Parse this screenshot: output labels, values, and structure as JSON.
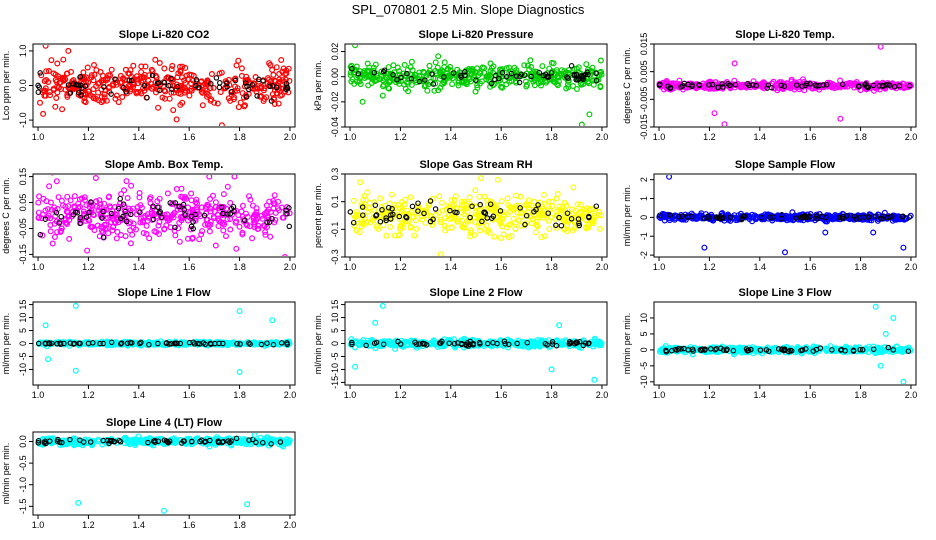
{
  "page_title": "SPL_070801  2.5 Min. Slope Diagnostics",
  "colors": {
    "black": "#000000",
    "red": "#ff0000",
    "green": "#00cc00",
    "magenta": "#ff00ff",
    "yellow": "#ffff00",
    "blue": "#0000ff",
    "cyan": "#00ffff"
  },
  "chart_data": [
    {
      "type": "scatter",
      "title": "Slope Li-820 CO2",
      "ylabel": "Lco ppm per min.",
      "xlim": [
        0.98,
        2.02
      ],
      "ylim": [
        -1.2,
        1.2
      ],
      "xticks": [
        "1.0",
        "1.2",
        "1.4",
        "1.6",
        "1.8",
        "2.0"
      ],
      "yticks": [
        "-1.0",
        "0.0",
        "1.0"
      ],
      "ytick_values": [
        -1.0,
        0.0,
        1.0
      ],
      "color": "red",
      "spread": 0.5,
      "outliers": [
        [
          1.03,
          1.15
        ],
        [
          1.12,
          1.0
        ],
        [
          1.55,
          -0.98
        ],
        [
          1.02,
          -0.82
        ],
        [
          1.73,
          -1.15
        ]
      ]
    },
    {
      "type": "scatter",
      "title": "Slope Li-820 Pressure",
      "ylabel": "kPa per min.",
      "xlim": [
        0.98,
        2.02
      ],
      "ylim": [
        -0.04,
        0.026
      ],
      "xticks": [
        "1.0",
        "1.2",
        "1.4",
        "1.6",
        "1.8",
        "2.0"
      ],
      "yticks": [
        "-0.04",
        "-0.02",
        "0.00",
        "0.02"
      ],
      "ytick_values": [
        -0.04,
        -0.02,
        0.0,
        0.02
      ],
      "color": "green",
      "spread": 0.008,
      "outliers": [
        [
          1.02,
          0.025
        ],
        [
          1.05,
          -0.02
        ],
        [
          1.13,
          -0.015
        ],
        [
          1.92,
          -0.038
        ],
        [
          1.95,
          -0.03
        ]
      ]
    },
    {
      "type": "scatter",
      "title": "Slope Li-820 Temp.",
      "ylabel": "degrees C per min.",
      "xlim": [
        0.98,
        2.02
      ],
      "ylim": [
        -0.015,
        0.015
      ],
      "xticks": [
        "1.0",
        "1.2",
        "1.4",
        "1.6",
        "1.8",
        "2.0"
      ],
      "yticks": [
        "-0.015",
        "-0.005",
        "0.005",
        "0.015"
      ],
      "ytick_values": [
        -0.015,
        -0.005,
        0.005,
        0.015
      ],
      "color": "magenta",
      "spread": 0.0012,
      "outliers": [
        [
          1.26,
          -0.014
        ],
        [
          1.88,
          0.014
        ],
        [
          1.22,
          -0.01
        ],
        [
          1.72,
          -0.012
        ],
        [
          1.3,
          0.008
        ]
      ]
    },
    {
      "type": "scatter",
      "title": "Slope Amb. Box Temp.",
      "ylabel": "degrees C per min.",
      "xlim": [
        0.98,
        2.02
      ],
      "ylim": [
        -0.16,
        0.16
      ],
      "xticks": [
        "1.0",
        "1.2",
        "1.4",
        "1.6",
        "1.8",
        "2.0"
      ],
      "yticks": [
        "-0.15",
        "-0.05",
        "0.05",
        "0.15"
      ],
      "ytick_values": [
        -0.15,
        -0.05,
        0.05,
        0.15
      ],
      "color": "magenta",
      "spread": 0.09,
      "outliers": [
        [
          1.68,
          0.15
        ],
        [
          1.78,
          0.15
        ],
        [
          1.98,
          -0.16
        ]
      ]
    },
    {
      "type": "scatter",
      "title": "Slope Gas Stream RH",
      "ylabel": "percent per min.",
      "xlim": [
        0.98,
        2.02
      ],
      "ylim": [
        -0.3,
        0.3
      ],
      "xticks": [
        "1.0",
        "1.2",
        "1.4",
        "1.6",
        "1.8",
        "2.0"
      ],
      "yticks": [
        "-0.3",
        "-0.1",
        "0.1",
        "0.3"
      ],
      "ytick_values": [
        -0.3,
        -0.1,
        0.1,
        0.3
      ],
      "color": "yellow",
      "spread": 0.12,
      "outliers": [
        [
          1.52,
          0.27
        ],
        [
          1.36,
          -0.28
        ],
        [
          1.04,
          0.24
        ]
      ]
    },
    {
      "type": "scatter",
      "title": "Slope Sample Flow",
      "ylabel": "ml/min per min.",
      "xlim": [
        0.98,
        2.02
      ],
      "ylim": [
        -2.1,
        2.3
      ],
      "xticks": [
        "1.0",
        "1.2",
        "1.4",
        "1.6",
        "1.8",
        "2.0"
      ],
      "yticks": [
        "-2",
        "-1",
        "0",
        "1",
        "2"
      ],
      "ytick_values": [
        -2,
        -1,
        0,
        1,
        2
      ],
      "color": "blue",
      "spread": 0.15,
      "outliers": [
        [
          1.04,
          2.15
        ],
        [
          1.18,
          -1.6
        ],
        [
          1.5,
          -1.85
        ],
        [
          1.97,
          -1.6
        ],
        [
          1.85,
          -0.8
        ],
        [
          1.66,
          -0.8
        ]
      ]
    },
    {
      "type": "scatter",
      "title": "Slope Line 1 Flow",
      "ylabel": "ml/min per min.",
      "xlim": [
        0.98,
        2.02
      ],
      "ylim": [
        -16,
        16
      ],
      "xticks": [
        "1.0",
        "1.2",
        "1.4",
        "1.6",
        "1.8",
        "2.0"
      ],
      "yticks": [
        "-10",
        "-5",
        "0",
        "5",
        "10",
        "15"
      ],
      "ytick_values": [
        -10,
        -5,
        0,
        5,
        10,
        15
      ],
      "color": "cyan",
      "spread": 0.6,
      "outliers": [
        [
          1.15,
          14.5
        ],
        [
          1.15,
          -10.5
        ],
        [
          1.8,
          12.5
        ],
        [
          1.8,
          -11
        ],
        [
          1.93,
          9
        ],
        [
          1.03,
          7
        ],
        [
          1.04,
          -6
        ]
      ]
    },
    {
      "type": "scatter",
      "title": "Slope Line 2 Flow",
      "ylabel": "ml/min per min.",
      "xlim": [
        0.98,
        2.02
      ],
      "ylim": [
        -16,
        16
      ],
      "xticks": [
        "1.0",
        "1.2",
        "1.4",
        "1.6",
        "1.8",
        "2.0"
      ],
      "yticks": [
        "-15",
        "-10",
        "-5",
        "0",
        "5",
        "10",
        "15"
      ],
      "ytick_values": [
        -15,
        -10,
        -5,
        0,
        5,
        10,
        15
      ],
      "color": "cyan",
      "spread": 1.2,
      "outliers": [
        [
          1.13,
          14.5
        ],
        [
          1.8,
          -10
        ],
        [
          1.97,
          -14
        ],
        [
          1.83,
          7
        ],
        [
          1.1,
          8
        ],
        [
          1.02,
          -9
        ]
      ]
    },
    {
      "type": "scatter",
      "title": "Slope Line 3 Flow",
      "ylabel": "ml/min per min.",
      "xlim": [
        0.98,
        2.02
      ],
      "ylim": [
        -11,
        15
      ],
      "xticks": [
        "1.0",
        "1.2",
        "1.4",
        "1.6",
        "1.8",
        "2.0"
      ],
      "yticks": [
        "-10",
        "-5",
        "0",
        "5",
        "10"
      ],
      "ytick_values": [
        -10,
        -5,
        0,
        5,
        10
      ],
      "color": "cyan",
      "spread": 0.8,
      "outliers": [
        [
          1.86,
          13.5
        ],
        [
          1.97,
          -10
        ],
        [
          1.93,
          10
        ],
        [
          1.9,
          5
        ],
        [
          1.88,
          -5
        ]
      ]
    },
    {
      "type": "scatter",
      "title": "Slope Line 4 (LT) Flow",
      "ylabel": "ml/min per min.",
      "xlim": [
        0.98,
        2.02
      ],
      "ylim": [
        -1.7,
        0.22
      ],
      "xticks": [
        "1.0",
        "1.2",
        "1.4",
        "1.6",
        "1.8",
        "2.0"
      ],
      "yticks": [
        "-1.5",
        "-1.0",
        "-0.5",
        "0.0"
      ],
      "ytick_values": [
        -1.5,
        -1.0,
        -0.5,
        0.0
      ],
      "color": "cyan",
      "spread": 0.07,
      "outliers": [
        [
          1.16,
          -1.42
        ],
        [
          1.5,
          -1.6
        ],
        [
          1.83,
          -1.45
        ],
        [
          1.86,
          0.15
        ]
      ]
    }
  ]
}
